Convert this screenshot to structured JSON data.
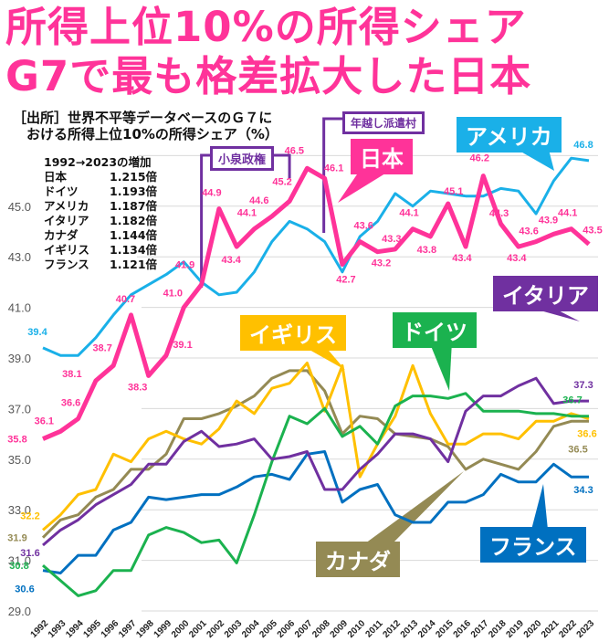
{
  "title_lines": [
    "所得上位10%の所得シェア",
    "G7で最も格差拡大した日本"
  ],
  "source_lines": [
    "［出所］世界不平等データベースのＧ７に",
    "　おける所得上位10%の所得シェア（%）"
  ],
  "growth_table": {
    "header": "1992→2023の増加",
    "rows": [
      {
        "name": "日本",
        "value": "1.215倍"
      },
      {
        "name": "ドイツ",
        "value": "1.193倍"
      },
      {
        "name": "アメリカ",
        "value": "1.187倍"
      },
      {
        "name": "イタリア",
        "value": "1.182倍"
      },
      {
        "name": "カナダ",
        "value": "1.144倍"
      },
      {
        "name": "イギリス",
        "value": "1.134倍"
      },
      {
        "name": "フランス",
        "value": "1.121倍"
      }
    ]
  },
  "annotations": {
    "koizumi": "小泉政権",
    "hakenmura": "年越し派遣村"
  },
  "chart_data": {
    "type": "line",
    "title": "所得上位10%の所得シェア",
    "xlabel": "",
    "ylabel": "%",
    "ylim": [
      29,
      47
    ],
    "yticks": [
      29.0,
      31.0,
      33.0,
      35.0,
      37.0,
      39.0,
      41.0,
      43.0,
      45.0
    ],
    "ytick_labels": [
      "29.0",
      "31.0",
      "33.0",
      "35.0",
      "37.0",
      "39.0",
      "41.0",
      "43.0",
      "45.0"
    ],
    "grid": true,
    "x": [
      1992,
      1993,
      1994,
      1995,
      1996,
      1997,
      1998,
      1999,
      2000,
      2001,
      2002,
      2003,
      2004,
      2005,
      2006,
      2007,
      2008,
      2009,
      2010,
      2011,
      2012,
      2013,
      2014,
      2015,
      2016,
      2017,
      2018,
      2019,
      2020,
      2021,
      2022,
      2023
    ],
    "series": [
      {
        "name": "アメリカ",
        "color": "#1ab0e8",
        "width": 3,
        "values": [
          39.4,
          39.1,
          39.1,
          39.8,
          40.7,
          41.5,
          41.9,
          42.3,
          42.8,
          42.0,
          41.5,
          41.6,
          42.4,
          43.6,
          44.4,
          44.1,
          43.6,
          42.4,
          43.8,
          44.4,
          45.5,
          45.0,
          45.6,
          45.5,
          45.4,
          45.4,
          45.7,
          45.6,
          44.7,
          46.0,
          46.9,
          46.8
        ]
      },
      {
        "name": "日本",
        "color": "#ff3399",
        "width": 5,
        "values": [
          35.8,
          36.1,
          36.6,
          38.1,
          38.7,
          40.7,
          38.3,
          39.1,
          41.0,
          41.9,
          44.9,
          43.4,
          44.1,
          44.6,
          45.2,
          46.5,
          46.1,
          42.7,
          43.6,
          43.2,
          43.3,
          44.1,
          43.8,
          45.1,
          43.4,
          46.2,
          44.3,
          43.4,
          43.6,
          43.9,
          44.1,
          43.5
        ]
      },
      {
        "name": "イタリア",
        "color": "#7030a0",
        "width": 3,
        "values": [
          31.6,
          32.2,
          32.6,
          33.2,
          33.6,
          34.0,
          34.8,
          34.8,
          35.7,
          36.1,
          35.5,
          35.6,
          35.8,
          35.0,
          35.1,
          35.3,
          33.8,
          33.8,
          34.6,
          35.2,
          36.0,
          36.0,
          35.8,
          34.9,
          36.9,
          37.5,
          37.5,
          37.9,
          38.2,
          37.2,
          37.3,
          37.3
        ]
      },
      {
        "name": "ドイツ",
        "color": "#1bb24f",
        "width": 3,
        "values": [
          30.8,
          30.2,
          29.6,
          29.8,
          30.6,
          30.6,
          32.0,
          32.3,
          32.1,
          31.7,
          31.8,
          30.9,
          32.8,
          34.9,
          36.7,
          36.4,
          37.0,
          35.9,
          36.3,
          35.6,
          37.1,
          37.5,
          37.5,
          37.4,
          37.6,
          36.9,
          36.9,
          36.9,
          36.8,
          36.8,
          36.7,
          36.7
        ]
      },
      {
        "name": "イギリス",
        "color": "#ffc000",
        "width": 3,
        "values": [
          32.2,
          32.8,
          33.6,
          33.8,
          35.2,
          34.9,
          35.8,
          36.1,
          35.8,
          35.6,
          36.2,
          37.3,
          36.8,
          37.8,
          38.0,
          38.8,
          36.9,
          38.7,
          34.3,
          35.6,
          36.7,
          38.7,
          36.8,
          35.6,
          35.6,
          36.0,
          36.0,
          35.8,
          36.5,
          36.5,
          36.8,
          36.6
        ]
      },
      {
        "name": "カナダ",
        "color": "#948a54",
        "width": 3,
        "values": [
          31.9,
          32.6,
          32.8,
          33.5,
          33.8,
          34.6,
          34.6,
          35.2,
          36.6,
          36.6,
          36.8,
          37.1,
          37.5,
          38.2,
          38.5,
          38.5,
          37.7,
          36.0,
          36.7,
          36.6,
          36.0,
          35.9,
          35.8,
          35.5,
          34.6,
          35.0,
          34.8,
          34.6,
          35.3,
          36.3,
          36.5,
          36.5
        ]
      },
      {
        "name": "フランス",
        "color": "#0070c0",
        "width": 3,
        "values": [
          30.6,
          30.5,
          31.2,
          31.2,
          32.2,
          32.5,
          33.5,
          33.4,
          33.5,
          33.6,
          33.6,
          33.9,
          34.3,
          34.4,
          34.2,
          35.2,
          35.3,
          33.3,
          33.8,
          34.0,
          32.8,
          32.5,
          32.5,
          33.3,
          33.3,
          33.6,
          34.4,
          34.1,
          34.1,
          34.8,
          34.3,
          34.3
        ]
      }
    ],
    "data_labels": [
      {
        "series": "アメリカ",
        "year": 1992,
        "text": "39.4"
      },
      {
        "series": "アメリカ",
        "year": 2023,
        "text": "46.8"
      },
      {
        "series": "日本",
        "year": 1992,
        "text": "35.8"
      },
      {
        "series": "日本",
        "year": 1993,
        "text": "36.1"
      },
      {
        "series": "日本",
        "year": 1994,
        "text": "36.6"
      },
      {
        "series": "日本",
        "year": 1995,
        "text": "38.1"
      },
      {
        "series": "日本",
        "year": 1996,
        "text": "38.7"
      },
      {
        "series": "日本",
        "year": 1997,
        "text": "40.7"
      },
      {
        "series": "日本",
        "year": 1998,
        "text": "38.3"
      },
      {
        "series": "日本",
        "year": 1999,
        "text": "39.1"
      },
      {
        "series": "日本",
        "year": 2000,
        "text": "41.0"
      },
      {
        "series": "日本",
        "year": 2001,
        "text": "41.9"
      },
      {
        "series": "日本",
        "year": 2002,
        "text": "44.9"
      },
      {
        "series": "日本",
        "year": 2003,
        "text": "43.4"
      },
      {
        "series": "日本",
        "year": 2004,
        "text": "44.1"
      },
      {
        "series": "日本",
        "year": 2005,
        "text": "44.6"
      },
      {
        "series": "日本",
        "year": 2006,
        "text": "45.2"
      },
      {
        "series": "日本",
        "year": 2007,
        "text": "46.5"
      },
      {
        "series": "日本",
        "year": 2008,
        "text": "46.1"
      },
      {
        "series": "日本",
        "year": 2009,
        "text": "42.7"
      },
      {
        "series": "日本",
        "year": 2010,
        "text": "43.6"
      },
      {
        "series": "日本",
        "year": 2011,
        "text": "43.2"
      },
      {
        "series": "日本",
        "year": 2012,
        "text": "43.3"
      },
      {
        "series": "日本",
        "year": 2013,
        "text": "44.1"
      },
      {
        "series": "日本",
        "year": 2014,
        "text": "43.8"
      },
      {
        "series": "日本",
        "year": 2015,
        "text": "45.1"
      },
      {
        "series": "日本",
        "year": 2016,
        "text": "43.4"
      },
      {
        "series": "日本",
        "year": 2017,
        "text": "46.2"
      },
      {
        "series": "日本",
        "year": 2018,
        "text": "44.3"
      },
      {
        "series": "日本",
        "year": 2019,
        "text": "43.4"
      },
      {
        "series": "日本",
        "year": 2020,
        "text": "43.6"
      },
      {
        "series": "日本",
        "year": 2021,
        "text": "43.9"
      },
      {
        "series": "日本",
        "year": 2022,
        "text": "44.1"
      },
      {
        "series": "日本",
        "year": 2023,
        "text": "43.5"
      },
      {
        "series": "イタリア",
        "year": 1992,
        "text": "31.6"
      },
      {
        "series": "イタリア",
        "year": 2023,
        "text": "37.3"
      },
      {
        "series": "ドイツ",
        "year": 1992,
        "text": "30.8"
      },
      {
        "series": "ドイツ",
        "year": 2023,
        "text": "36.7"
      },
      {
        "series": "イギリス",
        "year": 1992,
        "text": "32.2"
      },
      {
        "series": "イギリス",
        "year": 2023,
        "text": "36.6"
      },
      {
        "series": "カナダ",
        "year": 1992,
        "text": "31.9"
      },
      {
        "series": "カナダ",
        "year": 2023,
        "text": "36.5"
      },
      {
        "series": "フランス",
        "year": 1992,
        "text": "30.6"
      },
      {
        "series": "フランス",
        "year": 2023,
        "text": "34.3"
      }
    ],
    "legend_callouts": [
      "アメリカ",
      "日本",
      "イタリア",
      "イギリス",
      "ドイツ",
      "カナダ",
      "フランス"
    ]
  }
}
